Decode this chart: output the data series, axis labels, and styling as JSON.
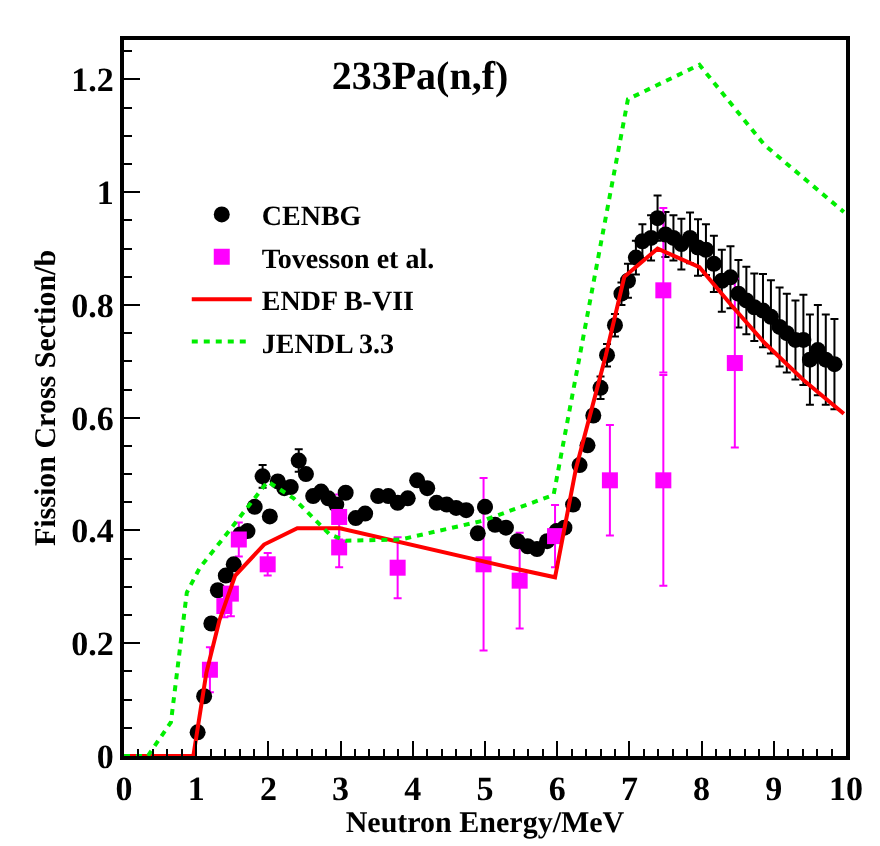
{
  "chart_data": {
    "type": "scatter",
    "title": "233Pa(n,f)",
    "xlabel": "Neutron Energy/MeV",
    "ylabel": "Fission Cross Section/b",
    "xlim": [
      0,
      10
    ],
    "ylim": [
      0,
      1.27
    ],
    "xticks": [
      0,
      1,
      2,
      3,
      4,
      5,
      6,
      7,
      8,
      9,
      10
    ],
    "yticks": [
      0,
      0.2,
      0.4,
      0.6,
      0.8,
      1,
      1.2
    ],
    "legend": "top left",
    "series": [
      {
        "name": "CENBG",
        "color": "#000000",
        "marker": "circle",
        "x": [
          1.02,
          1.11,
          1.21,
          1.3,
          1.41,
          1.52,
          1.61,
          1.71,
          1.81,
          1.92,
          2.02,
          2.13,
          2.22,
          2.31,
          2.42,
          2.52,
          2.62,
          2.73,
          2.83,
          2.94,
          3.07,
          3.21,
          3.34,
          3.52,
          3.66,
          3.79,
          3.93,
          4.06,
          4.2,
          4.33,
          4.47,
          4.6,
          4.74,
          4.9,
          5.0,
          5.14,
          5.29,
          5.45,
          5.59,
          5.72,
          5.86,
          5.99,
          6.1,
          6.22,
          6.31,
          6.42,
          6.5,
          6.6,
          6.69,
          6.8,
          6.89,
          6.98,
          7.09,
          7.18,
          7.3,
          7.39,
          7.5,
          7.61,
          7.72,
          7.84,
          7.95,
          8.06,
          8.17,
          8.28,
          8.4,
          8.51,
          8.62,
          8.73,
          8.85,
          8.96,
          9.08,
          9.18,
          9.3,
          9.41,
          9.5,
          9.61,
          9.72,
          9.84
        ],
        "values": [
          0.042,
          0.106,
          0.235,
          0.294,
          0.32,
          0.34,
          0.393,
          0.399,
          0.442,
          0.496,
          0.425,
          0.487,
          0.475,
          0.477,
          0.524,
          0.5,
          0.461,
          0.469,
          0.457,
          0.446,
          0.467,
          0.422,
          0.43,
          0.461,
          0.461,
          0.449,
          0.457,
          0.489,
          0.475,
          0.449,
          0.446,
          0.44,
          0.436,
          0.395,
          0.442,
          0.41,
          0.405,
          0.381,
          0.372,
          0.367,
          0.381,
          0.399,
          0.405,
          0.446,
          0.516,
          0.551,
          0.604,
          0.653,
          0.711,
          0.764,
          0.82,
          0.843,
          0.884,
          0.913,
          0.919,
          0.954,
          0.925,
          0.919,
          0.908,
          0.919,
          0.902,
          0.898,
          0.873,
          0.843,
          0.849,
          0.82,
          0.808,
          0.796,
          0.79,
          0.779,
          0.761,
          0.75,
          0.738,
          0.738,
          0.703,
          0.72,
          0.703,
          0.695
        ],
        "errors": [
          null,
          null,
          null,
          null,
          null,
          null,
          null,
          null,
          null,
          0.02,
          null,
          null,
          null,
          null,
          0.02,
          null,
          null,
          null,
          null,
          null,
          null,
          null,
          null,
          null,
          null,
          null,
          null,
          null,
          null,
          null,
          null,
          null,
          null,
          null,
          null,
          null,
          null,
          null,
          null,
          null,
          null,
          null,
          null,
          null,
          null,
          null,
          null,
          0.02,
          0.02,
          0.02,
          0.02,
          0.03,
          0.03,
          0.03,
          0.04,
          0.04,
          0.04,
          0.04,
          0.045,
          0.045,
          0.05,
          0.045,
          0.05,
          0.055,
          0.055,
          0.06,
          0.06,
          0.06,
          0.065,
          0.065,
          0.07,
          0.07,
          0.07,
          0.08,
          0.08,
          0.08,
          0.08,
          0.08
        ]
      },
      {
        "name": "Tovesson et al.",
        "color": "#ff00ff",
        "marker": "square",
        "x": [
          1.19,
          1.39,
          1.48,
          1.59,
          1.99,
          2.98,
          2.98,
          3.79,
          4.98,
          5.48,
          5.97,
          6.73,
          7.47,
          7.47,
          8.46
        ],
        "values": [
          0.153,
          0.266,
          0.288,
          0.384,
          0.34,
          0.424,
          0.37,
          0.334,
          0.34,
          0.311,
          0.39,
          0.489,
          0.489,
          0.826,
          0.697
        ],
        "errors": [
          0.04,
          0.02,
          0.04,
          0.03,
          0.02,
          0.04,
          0.035,
          0.054,
          0.153,
          0.085,
          0.055,
          0.098,
          0.187,
          0.146,
          0.15
        ]
      },
      {
        "name": "ENDF B-VII",
        "color": "#ff0000",
        "type": "line",
        "line_style": "solid",
        "x": [
          0,
          0.96,
          1.14,
          1.32,
          1.54,
          1.94,
          2.4,
          2.99,
          5.36,
          5.97,
          6.26,
          6.67,
          6.93,
          7.39,
          7.97,
          8.41,
          8.87,
          9.41,
          9.97
        ],
        "values": [
          0,
          0,
          0.147,
          0.24,
          0.32,
          0.375,
          0.404,
          0.404,
          0.334,
          0.317,
          0.51,
          0.709,
          0.85,
          0.9,
          0.867,
          0.8,
          0.733,
          0.667,
          0.607
        ]
      },
      {
        "name": "JENDL 3.3",
        "color": "#00ee00",
        "type": "line",
        "line_style": "dotted",
        "x": [
          0,
          0.33,
          0.65,
          0.87,
          1.05,
          1.46,
          1.99,
          2.35,
          2.85,
          3.07,
          3.83,
          4.96,
          5.95,
          6.98,
          7.97,
          8.87,
          9.97
        ],
        "values": [
          0,
          0,
          0.06,
          0.29,
          0.334,
          0.4,
          0.487,
          0.457,
          0.393,
          0.382,
          0.384,
          0.417,
          0.463,
          1.165,
          1.226,
          1.084,
          0.965
        ]
      }
    ]
  }
}
